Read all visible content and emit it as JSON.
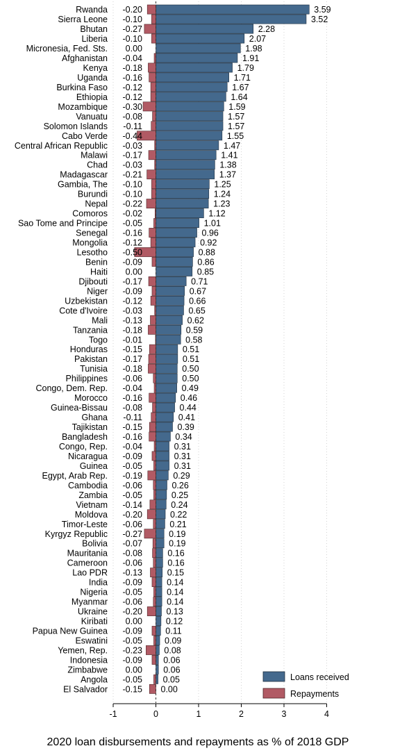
{
  "chart_data": {
    "type": "bar",
    "orientation": "horizontal",
    "xlabel": "2020 loan disbursements and repayments as % of 2018 GDP",
    "xlim": [
      -1,
      4
    ],
    "xticks": [
      -1,
      0,
      1,
      2,
      3,
      4
    ],
    "grid": true,
    "legend_position": "bottom-right",
    "colors": {
      "loans": "#44698d",
      "repayments": "#b15a64"
    },
    "categories": [
      "Rwanda",
      "Sierra Leone",
      "Bhutan",
      "Liberia",
      "Micronesia, Fed. Sts.",
      "Afghanistan",
      "Kenya",
      "Uganda",
      "Burkina Faso",
      "Ethiopia",
      "Mozambique",
      "Vanuatu",
      "Solomon Islands",
      "Cabo Verde",
      "Central African Republic",
      "Malawi",
      "Chad",
      "Madagascar",
      "Gambia, The",
      "Burundi",
      "Nepal",
      "Comoros",
      "Sao Tome and Principe",
      "Senegal",
      "Mongolia",
      "Lesotho",
      "Benin",
      "Haiti",
      "Djibouti",
      "Niger",
      "Uzbekistan",
      "Cote d'Ivoire",
      "Mali",
      "Tanzania",
      "Togo",
      "Honduras",
      "Pakistan",
      "Tunisia",
      "Philippines",
      "Congo, Dem. Rep.",
      "Morocco",
      "Guinea-Bissau",
      "Ghana",
      "Tajikistan",
      "Bangladesh",
      "Congo, Rep.",
      "Nicaragua",
      "Guinea",
      "Egypt, Arab Rep.",
      "Cambodia",
      "Zambia",
      "Vietnam",
      "Moldova",
      "Timor-Leste",
      "Kyrgyz Republic",
      "Bolivia",
      "Mauritania",
      "Cameroon",
      "Lao PDR",
      "India",
      "Nigeria",
      "Myanmar",
      "Ukraine",
      "Kiribati",
      "Papua New Guinea",
      "Eswatini",
      "Yemen, Rep.",
      "Indonesia",
      "Zimbabwe",
      "Angola",
      "El Salvador"
    ],
    "series": [
      {
        "name": "Loans received",
        "values": [
          3.59,
          3.52,
          2.28,
          2.07,
          1.98,
          1.91,
          1.79,
          1.71,
          1.67,
          1.64,
          1.59,
          1.57,
          1.57,
          1.55,
          1.47,
          1.41,
          1.38,
          1.37,
          1.25,
          1.24,
          1.23,
          1.12,
          1.01,
          0.96,
          0.92,
          0.88,
          0.86,
          0.85,
          0.71,
          0.67,
          0.66,
          0.65,
          0.62,
          0.59,
          0.58,
          0.51,
          0.51,
          0.5,
          0.5,
          0.49,
          0.46,
          0.44,
          0.41,
          0.39,
          0.34,
          0.31,
          0.31,
          0.31,
          0.29,
          0.26,
          0.25,
          0.24,
          0.22,
          0.21,
          0.19,
          0.19,
          0.16,
          0.16,
          0.15,
          0.14,
          0.14,
          0.14,
          0.13,
          0.12,
          0.11,
          0.09,
          0.08,
          0.06,
          0.06,
          0.05,
          0.0
        ],
        "labels": [
          "3.59",
          "3.52",
          "2.28",
          "2.07",
          "1.98",
          "1.91",
          "1.79",
          "1.71",
          "1.67",
          "1.64",
          "1.59",
          "1.57",
          "1.57",
          "1.55",
          "1.47",
          "1.41",
          "1.38",
          "1.37",
          "1.25",
          "1.24",
          "1.23",
          "1.12",
          "1.01",
          "0.96",
          "0.92",
          "0.88",
          "0.86",
          "0.85",
          "0.71",
          "0.67",
          "0.66",
          "0.65",
          "0.62",
          "0.59",
          "0.58",
          "0.51",
          "0.51",
          "0.50",
          "0.50",
          "0.49",
          "0.46",
          "0.44",
          "0.41",
          "0.39",
          "0.34",
          "0.31",
          "0.31",
          "0.31",
          "0.29",
          "0.26",
          "0.25",
          "0.24",
          "0.22",
          "0.21",
          "0.19",
          "0.19",
          "0.16",
          "0.16",
          "0.15",
          "0.14",
          "0.14",
          "0.14",
          "0.13",
          "0.12",
          "0.11",
          "0.09",
          "0.08",
          "0.06",
          "0.06",
          "0.05",
          "0.00"
        ]
      },
      {
        "name": "Repayments",
        "values": [
          -0.2,
          -0.1,
          -0.27,
          -0.1,
          0.0,
          -0.04,
          -0.18,
          -0.16,
          -0.12,
          -0.12,
          -0.3,
          -0.08,
          -0.11,
          -0.44,
          -0.03,
          -0.17,
          -0.03,
          -0.21,
          -0.1,
          -0.1,
          -0.22,
          -0.02,
          -0.05,
          -0.16,
          -0.12,
          -0.5,
          -0.09,
          0.0,
          -0.17,
          -0.09,
          -0.12,
          -0.03,
          -0.13,
          -0.18,
          -0.01,
          -0.15,
          -0.17,
          -0.18,
          -0.06,
          -0.04,
          -0.16,
          -0.08,
          -0.11,
          -0.15,
          -0.16,
          -0.04,
          -0.09,
          -0.05,
          -0.19,
          -0.06,
          -0.05,
          -0.14,
          -0.2,
          -0.06,
          -0.27,
          -0.07,
          -0.08,
          -0.06,
          -0.13,
          -0.09,
          -0.05,
          -0.06,
          -0.2,
          0.0,
          -0.09,
          -0.05,
          -0.23,
          -0.09,
          0.0,
          -0.05,
          -0.15
        ],
        "labels": [
          "-0.20",
          "-0.10",
          "-0.27",
          "-0.10",
          "0.00",
          "-0.04",
          "-0.18",
          "-0.16",
          "-0.12",
          "-0.12",
          "-0.30",
          "-0.08",
          "-0.11",
          "-0.44",
          "-0.03",
          "-0.17",
          "-0.03",
          "-0.21",
          "-0.10",
          "-0.10",
          "-0.22",
          "-0.02",
          "-0.05",
          "-0.16",
          "-0.12",
          "-0.50",
          "-0.09",
          "0.00",
          "-0.17",
          "-0.09",
          "-0.12",
          "-0.03",
          "-0.13",
          "-0.18",
          "-0.01",
          "-0.15",
          "-0.17",
          "-0.18",
          "-0.06",
          "-0.04",
          "-0.16",
          "-0.08",
          "-0.11",
          "-0.15",
          "-0.16",
          "-0.04",
          "-0.09",
          "-0.05",
          "-0.19",
          "-0.06",
          "-0.05",
          "-0.14",
          "-0.20",
          "-0.06",
          "-0.27",
          "-0.07",
          "-0.08",
          "-0.06",
          "-0.13",
          "-0.09",
          "-0.05",
          "-0.06",
          "-0.20",
          "0.00",
          "-0.09",
          "-0.05",
          "-0.23",
          "-0.09",
          "0.00",
          "-0.05",
          "-0.15"
        ]
      }
    ]
  }
}
